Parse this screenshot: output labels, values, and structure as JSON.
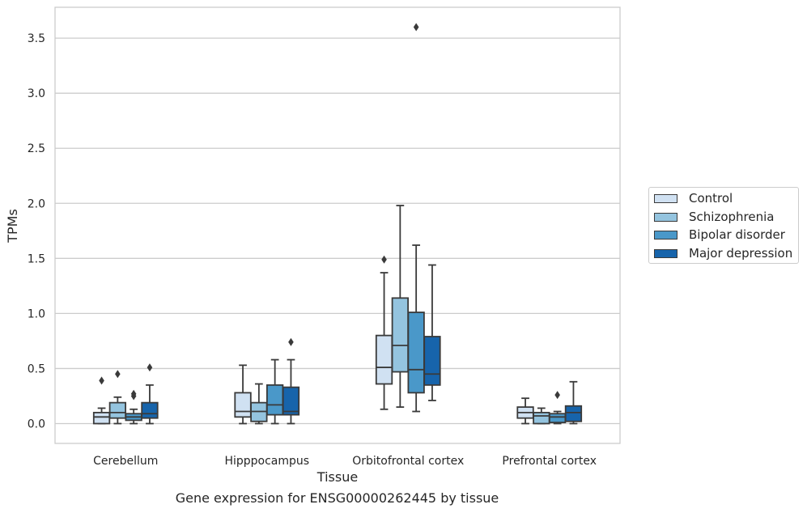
{
  "caption": "Gene expression for ENSG00000262445 by tissue",
  "colors": {
    "Control": "#d0e1f2",
    "Schizophrenia": "#94c4df",
    "Bipolar disorder": "#4a98c9",
    "Major depression": "#1764ab",
    "grid": "#cccccc",
    "box_line": "#3a3a3a"
  },
  "chart_data": {
    "type": "box",
    "title": "",
    "xlabel": "Tissue",
    "ylabel": "TPMs",
    "ylim": [
      -0.18,
      3.78
    ],
    "yticks": [
      0.0,
      0.5,
      1.0,
      1.5,
      2.0,
      2.5,
      3.0,
      3.5
    ],
    "ytick_labels": [
      "0.0",
      "0.5",
      "1.0",
      "1.5",
      "2.0",
      "2.5",
      "3.0",
      "3.5"
    ],
    "grid": true,
    "legend_position": "outside-right",
    "categories": [
      "Cerebellum",
      "Hipppocampus",
      "Orbitofrontal cortex",
      "Prefrontal cortex"
    ],
    "series": [
      {
        "name": "Control",
        "boxes": [
          {
            "whisker_low": 0.0,
            "q1": 0.0,
            "median": 0.06,
            "q3": 0.1,
            "whisker_high": 0.14,
            "outliers": [
              0.39
            ]
          },
          {
            "whisker_low": 0.0,
            "q1": 0.06,
            "median": 0.11,
            "q3": 0.28,
            "whisker_high": 0.53,
            "outliers": []
          },
          {
            "whisker_low": 0.13,
            "q1": 0.36,
            "median": 0.51,
            "q3": 0.8,
            "whisker_high": 1.37,
            "outliers": [
              1.49
            ]
          },
          {
            "whisker_low": 0.0,
            "q1": 0.05,
            "median": 0.1,
            "q3": 0.15,
            "whisker_high": 0.23,
            "outliers": []
          }
        ]
      },
      {
        "name": "Schizophrenia",
        "boxes": [
          {
            "whisker_low": 0.0,
            "q1": 0.05,
            "median": 0.1,
            "q3": 0.19,
            "whisker_high": 0.24,
            "outliers": [
              0.45
            ]
          },
          {
            "whisker_low": 0.0,
            "q1": 0.02,
            "median": 0.11,
            "q3": 0.19,
            "whisker_high": 0.36,
            "outliers": []
          },
          {
            "whisker_low": 0.15,
            "q1": 0.47,
            "median": 0.71,
            "q3": 1.14,
            "whisker_high": 1.98,
            "outliers": []
          },
          {
            "whisker_low": 0.0,
            "q1": 0.0,
            "median": 0.07,
            "q3": 0.1,
            "whisker_high": 0.14,
            "outliers": []
          }
        ]
      },
      {
        "name": "Bipolar disorder",
        "boxes": [
          {
            "whisker_low": 0.0,
            "q1": 0.03,
            "median": 0.06,
            "q3": 0.09,
            "whisker_high": 0.13,
            "outliers": [
              0.25,
              0.27
            ]
          },
          {
            "whisker_low": 0.0,
            "q1": 0.08,
            "median": 0.17,
            "q3": 0.35,
            "whisker_high": 0.58,
            "outliers": []
          },
          {
            "whisker_low": 0.11,
            "q1": 0.28,
            "median": 0.49,
            "q3": 1.01,
            "whisker_high": 1.62,
            "outliers": [
              3.6
            ]
          },
          {
            "whisker_low": 0.0,
            "q1": 0.01,
            "median": 0.06,
            "q3": 0.09,
            "whisker_high": 0.11,
            "outliers": [
              0.26
            ]
          }
        ]
      },
      {
        "name": "Major depression",
        "boxes": [
          {
            "whisker_low": 0.0,
            "q1": 0.05,
            "median": 0.09,
            "q3": 0.19,
            "whisker_high": 0.35,
            "outliers": [
              0.51
            ]
          },
          {
            "whisker_low": 0.0,
            "q1": 0.08,
            "median": 0.11,
            "q3": 0.33,
            "whisker_high": 0.58,
            "outliers": [
              0.74
            ]
          },
          {
            "whisker_low": 0.21,
            "q1": 0.35,
            "median": 0.45,
            "q3": 0.79,
            "whisker_high": 1.44,
            "outliers": []
          },
          {
            "whisker_low": 0.0,
            "q1": 0.02,
            "median": 0.1,
            "q3": 0.16,
            "whisker_high": 0.38,
            "outliers": []
          }
        ]
      }
    ]
  }
}
